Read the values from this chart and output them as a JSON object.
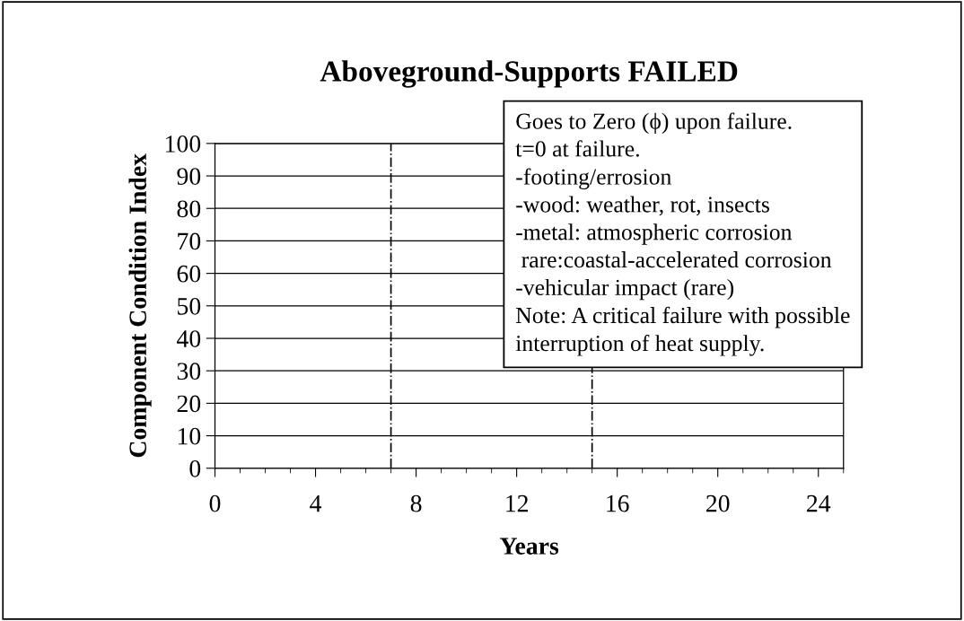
{
  "chart_data": {
    "type": "line",
    "title": "Aboveground-Supports FAILED",
    "xlabel": "Years",
    "ylabel": "Component Condition Index",
    "xlim": [
      0,
      25
    ],
    "xticks": [
      0,
      4,
      8,
      12,
      16,
      20,
      24
    ],
    "ylim": [
      0,
      100
    ],
    "yticks": [
      0,
      10,
      20,
      30,
      40,
      50,
      60,
      70,
      80,
      90,
      100
    ],
    "grid": "y",
    "ref_lines": [
      {
        "axis": "x",
        "value": 7,
        "label": null,
        "color": "#000000",
        "line_style": "dashdot"
      },
      {
        "axis": "x",
        "value": 15,
        "label": null,
        "color": "#000000",
        "line_style": "dashdot"
      }
    ],
    "annotations": [
      "Goes to Zero (ϕ) upon failure.\nt=0 at failure.\n-footing/errosion\n-wood: weather, rot, insects\n-metal: atmospheric corrosion\n rare:coastal-accelerated corrosion\n-vehicular impact (rare)\nNote: A critical failure with possible\ninterruption of heat supply."
    ]
  }
}
